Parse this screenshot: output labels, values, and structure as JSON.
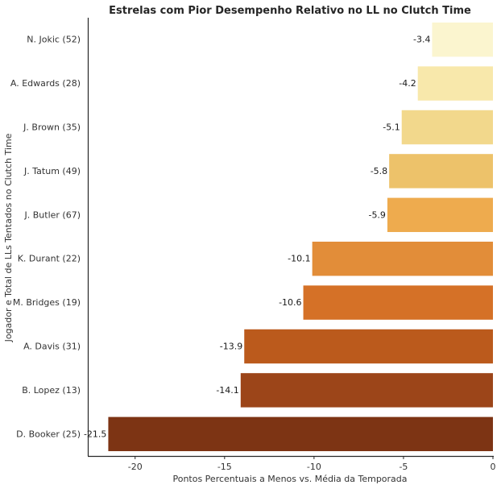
{
  "chart_data": {
    "type": "bar",
    "orientation": "horizontal",
    "title": "Estrelas com Pior Desempenho Relativo no LL no Clutch Time",
    "xlabel": "Pontos Percentuais a Menos vs. Média da Temporada",
    "ylabel": "Jogador e Total de LLs Tentados no Clutch Time",
    "categories": [
      "N. Jokic (52)",
      "A. Edwards (28)",
      "J. Brown (35)",
      "J. Tatum (49)",
      "J. Butler (67)",
      "K. Durant (22)",
      "M. Bridges (19)",
      "A. Davis (31)",
      "B. Lopez (13)",
      "D. Booker (25)"
    ],
    "values": [
      -3.4,
      -4.2,
      -5.1,
      -5.8,
      -5.9,
      -10.1,
      -10.6,
      -13.9,
      -14.1,
      -21.5
    ],
    "value_labels": [
      "-3.4",
      "-4.2",
      "-5.1",
      "-5.8",
      "-5.9",
      "-10.1",
      "-10.6",
      "-13.9",
      "-14.1",
      "-21.5"
    ],
    "colors": [
      "#fbf5cf",
      "#f8e8ab",
      "#f2d88c",
      "#edc26a",
      "#eeab4e",
      "#e28d39",
      "#d57127",
      "#bb5a1c",
      "#9c4519",
      "#7d3414"
    ],
    "xlim": [
      -22.6,
      0
    ],
    "xticks": [
      -20,
      -15,
      -10,
      -5,
      0
    ],
    "xtick_labels": [
      "-20",
      "-15",
      "-10",
      "-5",
      "0"
    ],
    "grid": false,
    "legend": "none"
  }
}
